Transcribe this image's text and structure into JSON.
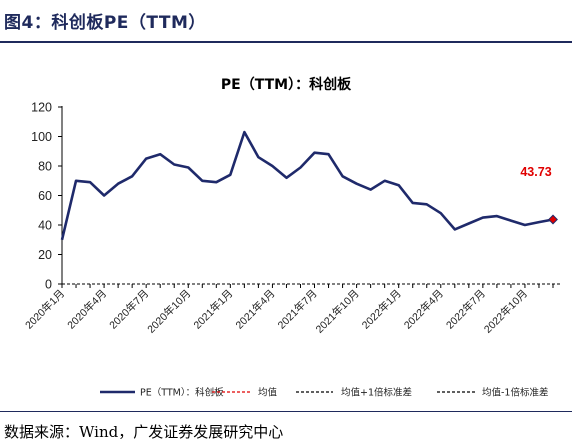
{
  "header": {
    "figure_title": "图4：科创板PE（TTM）"
  },
  "source": "数据来源：Wind，广发证券发展研究中心",
  "chart_data": {
    "type": "line",
    "title": "PE（TTM）：科创板",
    "xlabel": "",
    "ylabel": "",
    "ylim": [
      0,
      120
    ],
    "yticks": [
      0,
      20,
      40,
      60,
      80,
      100,
      120
    ],
    "x_tick_labels": [
      "2020年1月",
      "2020年4月",
      "2020年7月",
      "2020年10月",
      "2021年1月",
      "2021年4月",
      "2021年7月",
      "2021年10月",
      "2022年1月",
      "2022年4月",
      "2022年7月",
      "2022年10月"
    ],
    "series": [
      {
        "name": "PE（TTM）：科创板",
        "color": "#1f2a6b",
        "values": [
          30,
          70,
          69,
          60,
          68,
          73,
          85,
          88,
          81,
          79,
          70,
          69,
          74,
          103,
          86,
          80,
          72,
          79,
          89,
          88,
          73,
          68,
          64,
          70,
          67,
          55,
          54,
          48,
          37,
          41,
          45,
          46,
          43,
          40,
          42,
          43.73
        ]
      }
    ],
    "last_value_label": "43.73",
    "last_value_color": "#e00000",
    "legend": {
      "position": "bottom",
      "items": [
        {
          "label": "PE（TTM）：科创板",
          "style": "solid",
          "color": "#1f2a6b"
        },
        {
          "label": "均值",
          "style": "dashed",
          "color": "#e00000"
        },
        {
          "label": "均值+1倍标准差",
          "style": "dashed",
          "color": "#000000"
        },
        {
          "label": "均值-1倍标准差",
          "style": "dashed",
          "color": "#000000"
        }
      ]
    },
    "grid": false
  }
}
